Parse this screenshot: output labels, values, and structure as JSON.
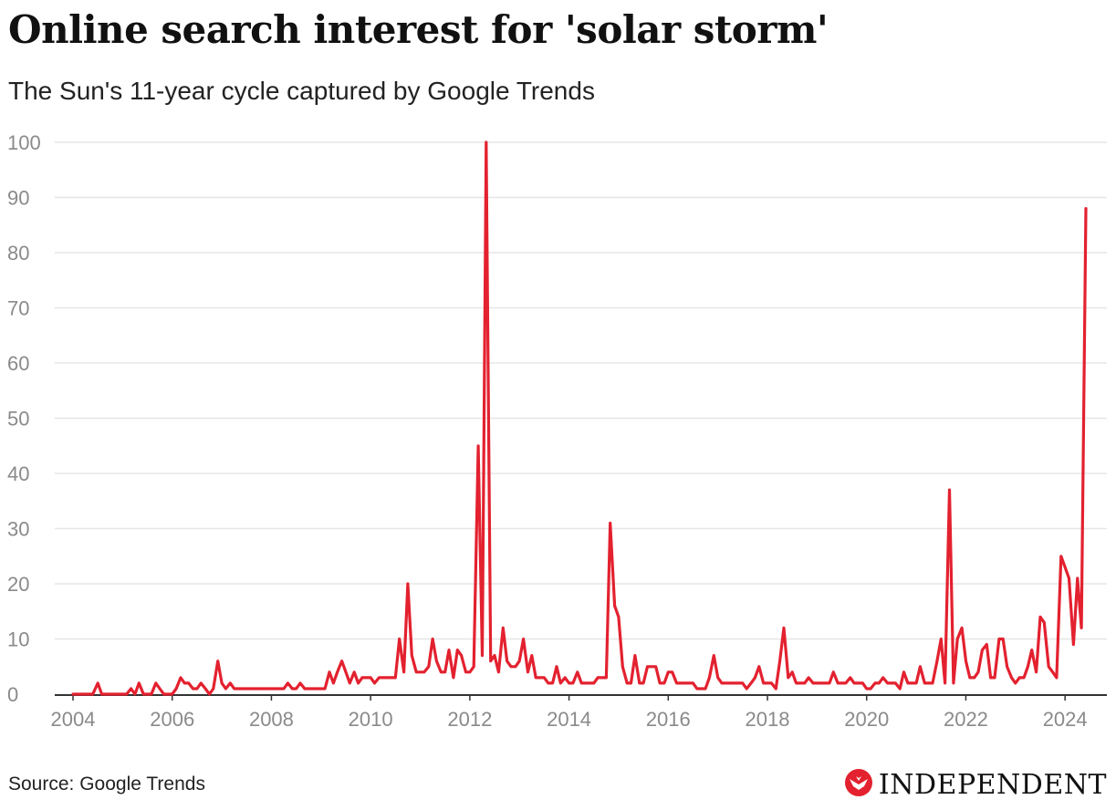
{
  "header": {
    "title": "Online search interest for 'solar storm'",
    "subtitle": "The Sun's 11-year cycle captured by Google Trends"
  },
  "footer": {
    "source": "Source: Google Trends",
    "brand": "INDEPENDENT",
    "brand_icon": "eagle-icon"
  },
  "colors": {
    "series": "#e3212f",
    "grid": "#e6e6e6",
    "axis": "#333333",
    "tick_text": "#8a8a8a",
    "brand": "#e3212f"
  },
  "chart_data": {
    "type": "line",
    "title": "Online search interest for 'solar storm'",
    "subtitle": "The Sun's 11-year cycle captured by Google Trends",
    "xlabel": "",
    "ylabel": "",
    "xlim": [
      2004.0,
      2024.42
    ],
    "ylim": [
      0,
      100
    ],
    "yticks": [
      0,
      10,
      20,
      30,
      40,
      50,
      60,
      70,
      80,
      90,
      100
    ],
    "xticks": [
      2004,
      2006,
      2008,
      2010,
      2012,
      2014,
      2016,
      2018,
      2020,
      2022,
      2024
    ],
    "grid": true,
    "legend": "none",
    "series": [
      {
        "points": [
          [
            2004.0,
            0
          ],
          [
            2004.25,
            0
          ],
          [
            2004.4,
            0
          ],
          [
            2004.5,
            2
          ],
          [
            2004.58,
            0
          ],
          [
            2004.75,
            0
          ],
          [
            2005.0,
            0
          ],
          [
            2005.08,
            0
          ],
          [
            2005.17,
            1
          ],
          [
            2005.25,
            0
          ],
          [
            2005.33,
            2
          ],
          [
            2005.42,
            0
          ],
          [
            2005.5,
            0
          ],
          [
            2005.58,
            0
          ],
          [
            2005.67,
            2
          ],
          [
            2005.75,
            1
          ],
          [
            2005.83,
            0
          ],
          [
            2005.92,
            0
          ],
          [
            2006.0,
            0
          ],
          [
            2006.08,
            1
          ],
          [
            2006.17,
            3
          ],
          [
            2006.25,
            2
          ],
          [
            2006.33,
            2
          ],
          [
            2006.42,
            1
          ],
          [
            2006.5,
            1
          ],
          [
            2006.58,
            2
          ],
          [
            2006.67,
            1
          ],
          [
            2006.75,
            0
          ],
          [
            2006.83,
            1
          ],
          [
            2006.92,
            6
          ],
          [
            2007.0,
            2
          ],
          [
            2007.08,
            1
          ],
          [
            2007.17,
            2
          ],
          [
            2007.25,
            1
          ],
          [
            2007.5,
            1
          ],
          [
            2007.75,
            1
          ],
          [
            2008.0,
            1
          ],
          [
            2008.25,
            1
          ],
          [
            2008.33,
            2
          ],
          [
            2008.42,
            1
          ],
          [
            2008.5,
            1
          ],
          [
            2008.58,
            2
          ],
          [
            2008.67,
            1
          ],
          [
            2008.75,
            1
          ],
          [
            2009.0,
            1
          ],
          [
            2009.08,
            1
          ],
          [
            2009.17,
            4
          ],
          [
            2009.25,
            2
          ],
          [
            2009.33,
            4
          ],
          [
            2009.42,
            6
          ],
          [
            2009.5,
            4
          ],
          [
            2009.58,
            2
          ],
          [
            2009.67,
            4
          ],
          [
            2009.75,
            2
          ],
          [
            2009.83,
            3
          ],
          [
            2010.0,
            3
          ],
          [
            2010.08,
            2
          ],
          [
            2010.17,
            3
          ],
          [
            2010.33,
            3
          ],
          [
            2010.5,
            3
          ],
          [
            2010.58,
            10
          ],
          [
            2010.67,
            4
          ],
          [
            2010.75,
            20
          ],
          [
            2010.83,
            7
          ],
          [
            2010.92,
            4
          ],
          [
            2011.0,
            4
          ],
          [
            2011.08,
            4
          ],
          [
            2011.17,
            5
          ],
          [
            2011.25,
            10
          ],
          [
            2011.33,
            6
          ],
          [
            2011.42,
            4
          ],
          [
            2011.5,
            4
          ],
          [
            2011.58,
            8
          ],
          [
            2011.67,
            3
          ],
          [
            2011.75,
            8
          ],
          [
            2011.83,
            7
          ],
          [
            2011.92,
            4
          ],
          [
            2012.0,
            4
          ],
          [
            2012.08,
            5
          ],
          [
            2012.17,
            45
          ],
          [
            2012.25,
            7
          ],
          [
            2012.33,
            100
          ],
          [
            2012.42,
            6
          ],
          [
            2012.5,
            7
          ],
          [
            2012.58,
            4
          ],
          [
            2012.67,
            12
          ],
          [
            2012.75,
            6
          ],
          [
            2012.83,
            5
          ],
          [
            2012.92,
            5
          ],
          [
            2013.0,
            6
          ],
          [
            2013.08,
            10
          ],
          [
            2013.17,
            4
          ],
          [
            2013.25,
            7
          ],
          [
            2013.33,
            3
          ],
          [
            2013.42,
            3
          ],
          [
            2013.5,
            3
          ],
          [
            2013.58,
            2
          ],
          [
            2013.67,
            2
          ],
          [
            2013.75,
            5
          ],
          [
            2013.83,
            2
          ],
          [
            2013.92,
            3
          ],
          [
            2014.0,
            2
          ],
          [
            2014.08,
            2
          ],
          [
            2014.17,
            4
          ],
          [
            2014.25,
            2
          ],
          [
            2014.42,
            2
          ],
          [
            2014.5,
            2
          ],
          [
            2014.58,
            3
          ],
          [
            2014.67,
            3
          ],
          [
            2014.75,
            3
          ],
          [
            2014.83,
            31
          ],
          [
            2014.92,
            16
          ],
          [
            2015.0,
            14
          ],
          [
            2015.08,
            5
          ],
          [
            2015.17,
            2
          ],
          [
            2015.25,
            2
          ],
          [
            2015.33,
            7
          ],
          [
            2015.42,
            2
          ],
          [
            2015.5,
            2
          ],
          [
            2015.58,
            5
          ],
          [
            2015.67,
            5
          ],
          [
            2015.75,
            5
          ],
          [
            2015.83,
            2
          ],
          [
            2015.92,
            2
          ],
          [
            2016.0,
            4
          ],
          [
            2016.08,
            4
          ],
          [
            2016.17,
            2
          ],
          [
            2016.25,
            2
          ],
          [
            2016.5,
            2
          ],
          [
            2016.58,
            1
          ],
          [
            2016.67,
            1
          ],
          [
            2016.75,
            1
          ],
          [
            2016.83,
            3
          ],
          [
            2016.92,
            7
          ],
          [
            2017.0,
            3
          ],
          [
            2017.08,
            2
          ],
          [
            2017.25,
            2
          ],
          [
            2017.5,
            2
          ],
          [
            2017.58,
            1
          ],
          [
            2017.67,
            2
          ],
          [
            2017.75,
            3
          ],
          [
            2017.83,
            5
          ],
          [
            2017.92,
            2
          ],
          [
            2018.0,
            2
          ],
          [
            2018.08,
            2
          ],
          [
            2018.17,
            1
          ],
          [
            2018.25,
            6
          ],
          [
            2018.33,
            12
          ],
          [
            2018.42,
            3
          ],
          [
            2018.5,
            4
          ],
          [
            2018.58,
            2
          ],
          [
            2018.67,
            2
          ],
          [
            2018.75,
            2
          ],
          [
            2018.83,
            3
          ],
          [
            2018.92,
            2
          ],
          [
            2019.0,
            2
          ],
          [
            2019.25,
            2
          ],
          [
            2019.33,
            4
          ],
          [
            2019.42,
            2
          ],
          [
            2019.5,
            2
          ],
          [
            2019.58,
            2
          ],
          [
            2019.67,
            3
          ],
          [
            2019.75,
            2
          ],
          [
            2019.83,
            2
          ],
          [
            2019.92,
            2
          ],
          [
            2020.0,
            1
          ],
          [
            2020.08,
            1
          ],
          [
            2020.17,
            2
          ],
          [
            2020.25,
            2
          ],
          [
            2020.33,
            3
          ],
          [
            2020.42,
            2
          ],
          [
            2020.5,
            2
          ],
          [
            2020.58,
            2
          ],
          [
            2020.67,
            1
          ],
          [
            2020.75,
            4
          ],
          [
            2020.83,
            2
          ],
          [
            2020.92,
            2
          ],
          [
            2021.0,
            2
          ],
          [
            2021.08,
            5
          ],
          [
            2021.17,
            2
          ],
          [
            2021.25,
            2
          ],
          [
            2021.33,
            2
          ],
          [
            2021.42,
            6
          ],
          [
            2021.5,
            10
          ],
          [
            2021.58,
            2
          ],
          [
            2021.67,
            37
          ],
          [
            2021.75,
            2
          ],
          [
            2021.83,
            10
          ],
          [
            2021.92,
            12
          ],
          [
            2022.0,
            6
          ],
          [
            2022.08,
            3
          ],
          [
            2022.17,
            3
          ],
          [
            2022.25,
            4
          ],
          [
            2022.33,
            8
          ],
          [
            2022.42,
            9
          ],
          [
            2022.5,
            3
          ],
          [
            2022.58,
            3
          ],
          [
            2022.67,
            10
          ],
          [
            2022.75,
            10
          ],
          [
            2022.83,
            5
          ],
          [
            2022.92,
            3
          ],
          [
            2023.0,
            2
          ],
          [
            2023.08,
            3
          ],
          [
            2023.17,
            3
          ],
          [
            2023.25,
            5
          ],
          [
            2023.33,
            8
          ],
          [
            2023.42,
            4
          ],
          [
            2023.5,
            14
          ],
          [
            2023.58,
            13
          ],
          [
            2023.67,
            5
          ],
          [
            2023.75,
            4
          ],
          [
            2023.83,
            3
          ],
          [
            2023.92,
            25
          ],
          [
            2024.0,
            23
          ],
          [
            2024.08,
            21
          ],
          [
            2024.17,
            9
          ],
          [
            2024.25,
            21
          ],
          [
            2024.33,
            12
          ],
          [
            2024.42,
            88
          ]
        ]
      }
    ]
  }
}
